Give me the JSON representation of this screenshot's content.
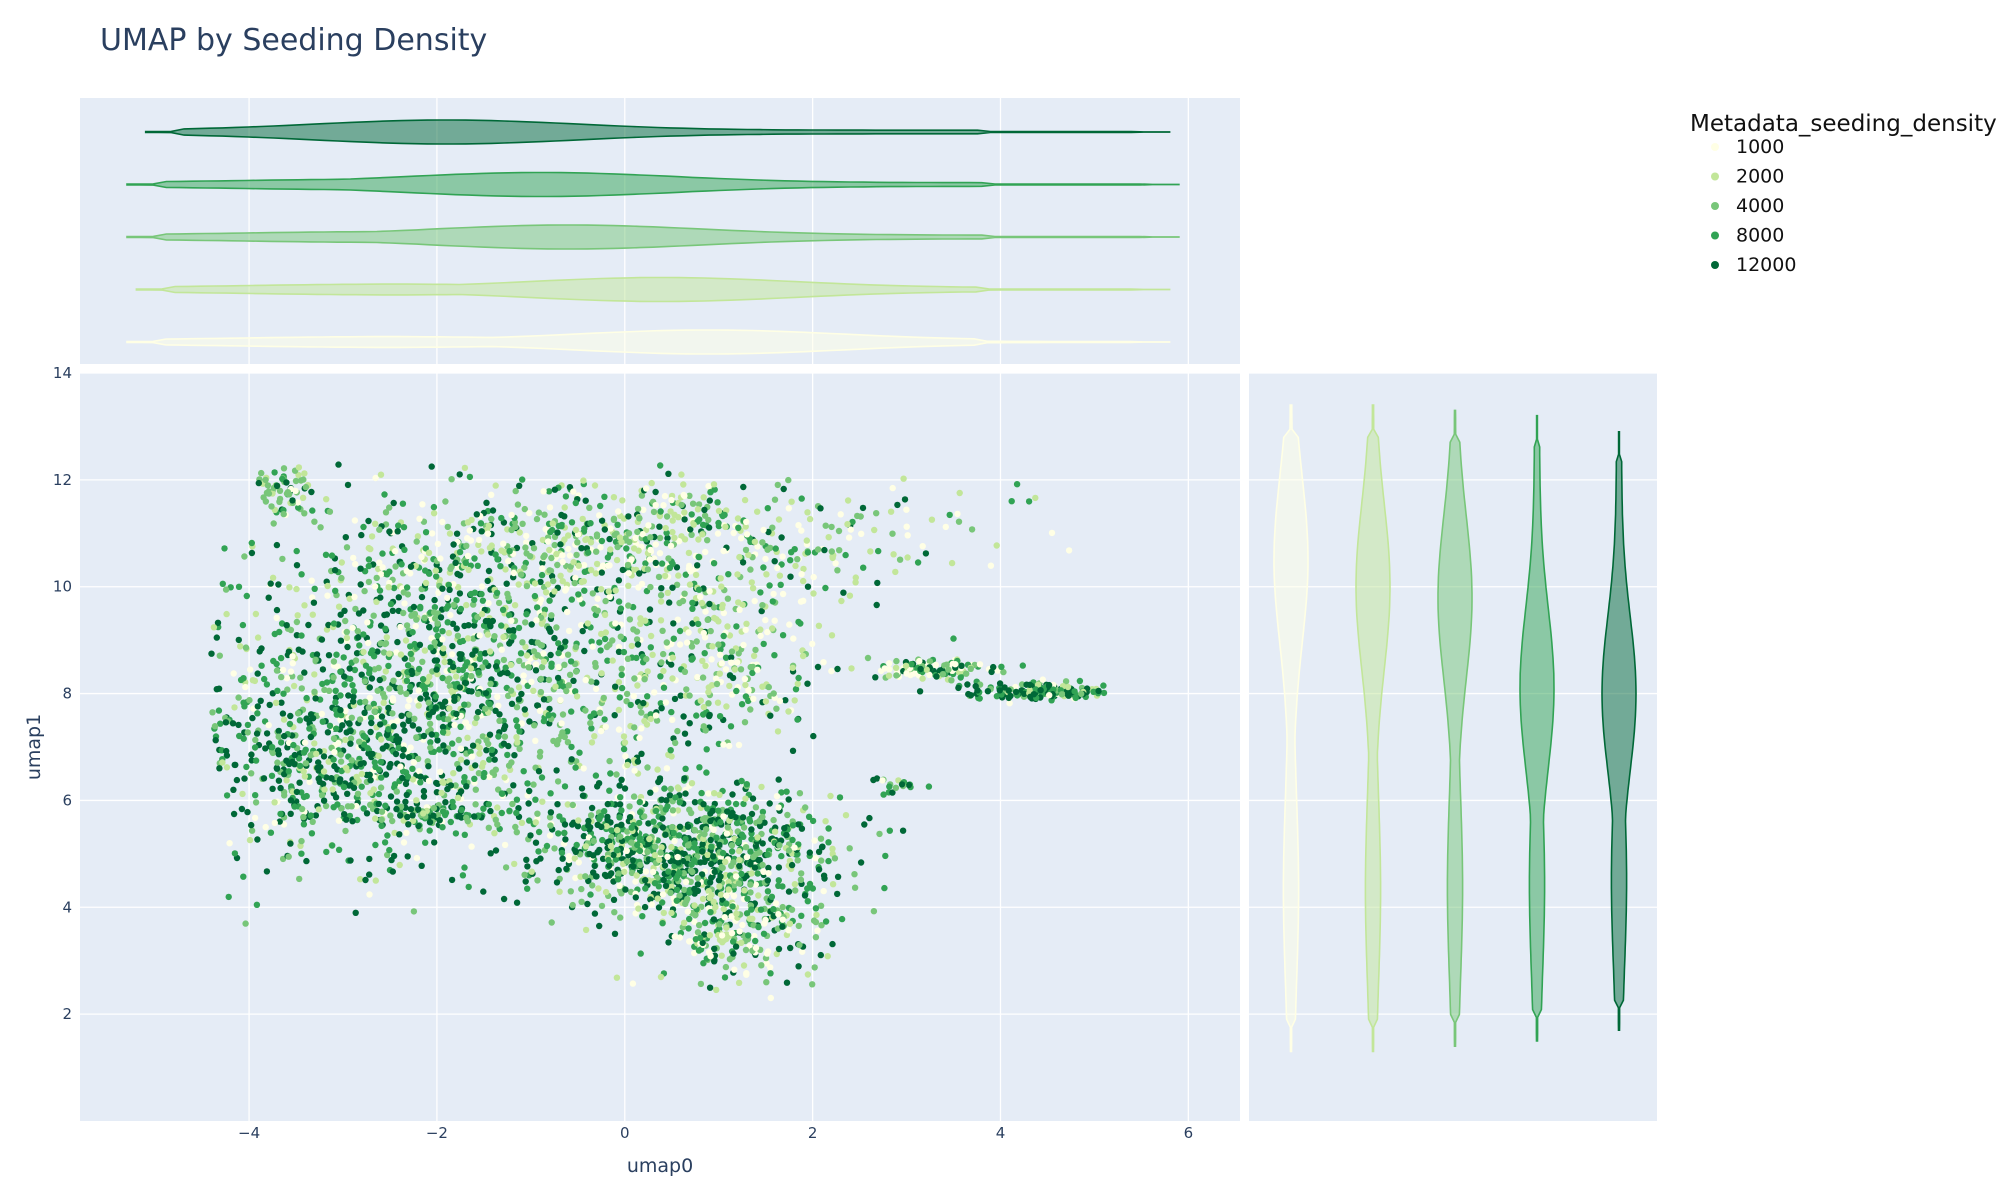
{
  "chart_data": {
    "type": "scatter",
    "title": "UMAP by Seeding Density",
    "xlabel": "umap0",
    "ylabel": "umap1",
    "xlim": [
      -5.8,
      6.55
    ],
    "ylim": [
      0.0,
      14.0
    ],
    "x_ticks": [
      -4,
      -2,
      0,
      2,
      4,
      6
    ],
    "x_tick_labels": [
      "−4",
      "−2",
      "0",
      "2",
      "4",
      "6"
    ],
    "y_ticks": [
      2,
      4,
      6,
      8,
      10,
      12,
      14
    ],
    "y_tick_labels": [
      "2",
      "4",
      "6",
      "8",
      "10",
      "12",
      "14"
    ],
    "grid": true,
    "legend": {
      "title": "Metadata_seeding_density",
      "position": "right"
    },
    "series": [
      {
        "name": "1000",
        "color": "#ffffe5",
        "x_range": [
          -5.3,
          5.8
        ],
        "x_peak": 0.9,
        "y_range": [
          1.3,
          13.4
        ],
        "y_peak": 10.5
      },
      {
        "name": "2000",
        "color": "#c2e699",
        "x_range": [
          -5.2,
          5.8
        ],
        "x_peak": 0.4,
        "y_range": [
          1.3,
          13.4
        ],
        "y_peak": 10.0
      },
      {
        "name": "4000",
        "color": "#78c679",
        "x_range": [
          -5.3,
          5.9
        ],
        "x_peak": -0.6,
        "y_range": [
          1.4,
          13.3
        ],
        "y_peak": 9.8
      },
      {
        "name": "8000",
        "color": "#31a354",
        "x_range": [
          -5.3,
          5.9
        ],
        "x_peak": -0.9,
        "y_range": [
          1.5,
          13.2
        ],
        "y_peak": 8.1
      },
      {
        "name": "12000",
        "color": "#006837",
        "x_range": [
          -5.1,
          5.8
        ],
        "x_peak": -1.9,
        "y_range": [
          1.7,
          12.9
        ],
        "y_peak": 8.0
      }
    ],
    "clusters": [
      {
        "cx": -1.6,
        "cy": 8.3,
        "sx": 1.3,
        "sy": 1.5,
        "n": 1400,
        "mix": [
          0.12,
          0.15,
          0.2,
          0.23,
          0.3
        ]
      },
      {
        "cx": 0.0,
        "cy": 10.9,
        "sx": 1.5,
        "sy": 0.6,
        "n": 650,
        "mix": [
          0.22,
          0.24,
          0.22,
          0.17,
          0.15
        ]
      },
      {
        "cx": -3.1,
        "cy": 6.7,
        "sx": 0.8,
        "sy": 1.0,
        "n": 550,
        "mix": [
          0.06,
          0.1,
          0.18,
          0.28,
          0.38
        ]
      },
      {
        "cx": 0.6,
        "cy": 5.1,
        "sx": 0.8,
        "sy": 0.6,
        "n": 900,
        "mix": [
          0.08,
          0.12,
          0.2,
          0.27,
          0.33
        ]
      },
      {
        "cx": 1.2,
        "cy": 3.8,
        "sx": 0.4,
        "sy": 0.6,
        "n": 300,
        "mix": [
          0.18,
          0.22,
          0.22,
          0.2,
          0.18
        ]
      },
      {
        "cx": 1.0,
        "cy": 8.7,
        "sx": 0.6,
        "sy": 0.9,
        "n": 250,
        "mix": [
          0.3,
          0.3,
          0.2,
          0.12,
          0.08
        ]
      },
      {
        "cx": -3.6,
        "cy": 11.8,
        "sx": 0.15,
        "sy": 0.25,
        "n": 70,
        "mix": [
          0.05,
          0.2,
          0.45,
          0.2,
          0.1
        ]
      },
      {
        "cx": 3.2,
        "cy": 8.45,
        "sx": 0.35,
        "sy": 0.1,
        "n": 110,
        "mix": [
          0.2,
          0.2,
          0.2,
          0.2,
          0.2
        ]
      },
      {
        "cx": 4.4,
        "cy": 8.05,
        "sx": 0.4,
        "sy": 0.08,
        "n": 170,
        "mix": [
          0.05,
          0.08,
          0.15,
          0.3,
          0.42
        ]
      },
      {
        "cx": 2.9,
        "cy": 6.3,
        "sx": 0.15,
        "sy": 0.08,
        "n": 20,
        "mix": [
          0.1,
          0.1,
          0.2,
          0.3,
          0.3
        ]
      },
      {
        "cx": -2.0,
        "cy": 5.7,
        "sx": 0.3,
        "sy": 0.1,
        "n": 60,
        "mix": [
          0.05,
          0.1,
          0.25,
          0.3,
          0.3
        ]
      }
    ]
  }
}
